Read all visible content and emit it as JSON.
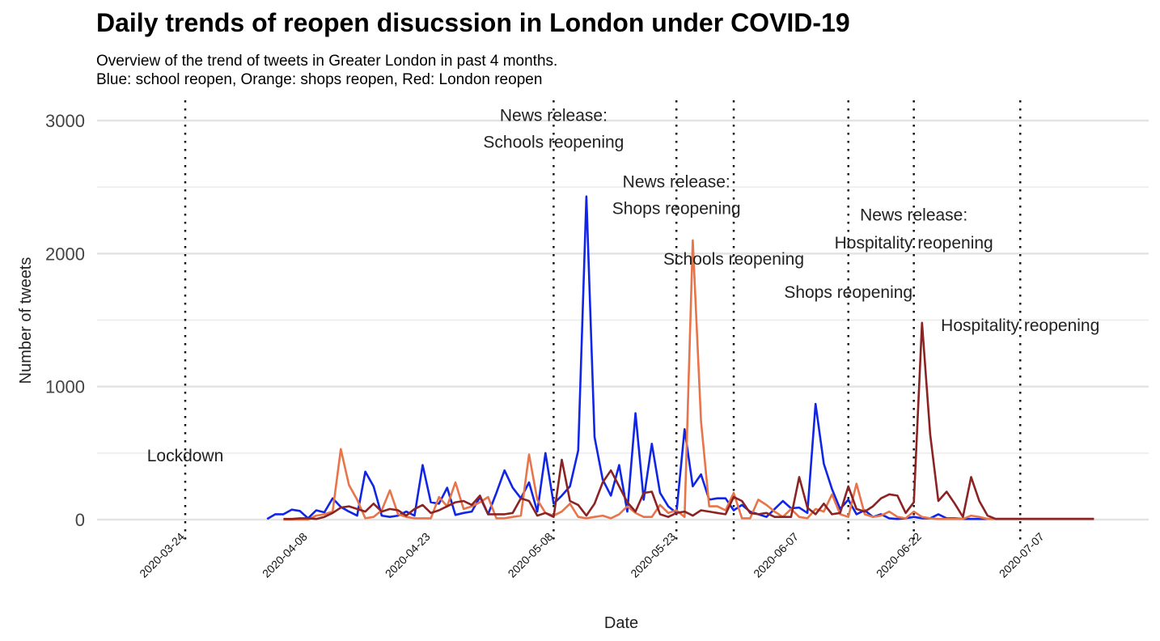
{
  "chart_data": {
    "type": "line",
    "title": "Daily trends of reopen disucssion in London under COVID-19",
    "subtitle_lines": [
      "Overview of the trend of tweets in Greater London in past 4 months.",
      "Blue: school reopen, Orange: shops reopen, Red: London reopen"
    ],
    "xlabel": "Date",
    "ylabel": "Number of tweets",
    "ylim": [
      0,
      3000
    ],
    "yticks": [
      0,
      1000,
      2000,
      3000
    ],
    "xlim": [
      "2020-03-24",
      "2020-07-20"
    ],
    "xticks": [
      "2020-03-24",
      "2020-04-08",
      "2020-04-23",
      "2020-05-08",
      "2020-05-23",
      "2020-06-07",
      "2020-06-22",
      "2020-07-07"
    ],
    "grid": true,
    "legend": "none",
    "x_start": "2020-04-03",
    "series": [
      {
        "color": "#1025e6",
        "values": [
          5,
          40,
          40,
          75,
          65,
          10,
          70,
          55,
          160,
          95,
          60,
          30,
          360,
          250,
          30,
          20,
          30,
          60,
          30,
          410,
          130,
          120,
          240,
          35,
          50,
          60,
          170,
          40,
          200,
          370,
          240,
          160,
          280,
          60,
          500,
          120,
          180,
          250,
          520,
          2430,
          620,
          300,
          180,
          410,
          60,
          800,
          150,
          570,
          200,
          100,
          50,
          680,
          250,
          340,
          150,
          160,
          160,
          70,
          110,
          60,
          40,
          20,
          80,
          140,
          85,
          90,
          50,
          870,
          420,
          230,
          80,
          150,
          40,
          70,
          20,
          40,
          10,
          5,
          10,
          20,
          10,
          10,
          40,
          10,
          10,
          5,
          5,
          5,
          5,
          5,
          5,
          5,
          5,
          5,
          5,
          5,
          5,
          5,
          5,
          5,
          5,
          5
        ]
      },
      {
        "color": "#e8744a",
        "values": [
          null,
          null,
          0,
          0,
          0,
          0,
          30,
          40,
          60,
          530,
          260,
          150,
          10,
          20,
          70,
          220,
          40,
          20,
          10,
          10,
          10,
          170,
          100,
          280,
          80,
          100,
          130,
          170,
          10,
          10,
          20,
          30,
          490,
          150,
          50,
          30,
          60,
          120,
          20,
          10,
          20,
          30,
          10,
          40,
          100,
          50,
          20,
          20,
          110,
          50,
          70,
          20,
          2100,
          740,
          100,
          100,
          70,
          200,
          10,
          10,
          150,
          110,
          60,
          20,
          80,
          20,
          10,
          80,
          60,
          190,
          40,
          20,
          270,
          40,
          20,
          30,
          60,
          20,
          10,
          60,
          20,
          10,
          5,
          5,
          5,
          5,
          30,
          20,
          5,
          5,
          5,
          5,
          5,
          5,
          5,
          5,
          5,
          5,
          5,
          5,
          5,
          5
        ]
      },
      {
        "color": "#8b2323",
        "values": [
          null,
          null,
          5,
          5,
          10,
          10,
          5,
          20,
          50,
          90,
          100,
          80,
          60,
          120,
          60,
          80,
          70,
          30,
          80,
          110,
          50,
          70,
          100,
          130,
          140,
          110,
          180,
          40,
          40,
          40,
          50,
          160,
          140,
          30,
          50,
          20,
          450,
          140,
          110,
          30,
          120,
          280,
          370,
          250,
          130,
          60,
          200,
          210,
          40,
          20,
          50,
          60,
          30,
          70,
          60,
          50,
          40,
          170,
          140,
          50,
          40,
          50,
          20,
          20,
          20,
          320,
          90,
          40,
          120,
          40,
          50,
          250,
          80,
          60,
          100,
          160,
          190,
          180,
          50,
          130,
          1480,
          640,
          140,
          210,
          120,
          20,
          320,
          140,
          30,
          5,
          5,
          5,
          5,
          5,
          5,
          5,
          5,
          5,
          5,
          5,
          5,
          5
        ]
      }
    ],
    "annotations": [
      {
        "date": "2020-03-24",
        "lines": [
          "Lockdown"
        ],
        "label_y": [
          480
        ]
      },
      {
        "date": "2020-05-08",
        "lines": [
          "News release:",
          "Schools reopening"
        ],
        "label_y": [
          3040,
          2840
        ]
      },
      {
        "date": "2020-05-23",
        "lines": [
          "News release:",
          "Shops reopening"
        ],
        "label_y": [
          2540,
          2340
        ]
      },
      {
        "date": "2020-05-30",
        "lines": [
          "Schools reopening"
        ],
        "label_y": [
          1960
        ]
      },
      {
        "date": "2020-06-13",
        "lines": [
          "Shops reopening"
        ],
        "label_y": [
          1710
        ]
      },
      {
        "date": "2020-06-21",
        "lines": [
          "News release:",
          "Hospitality reopening"
        ],
        "label_y": [
          2290,
          2080
        ]
      },
      {
        "date": "2020-07-04",
        "lines": [
          "Hospitality reopening"
        ],
        "label_y": [
          1460
        ]
      }
    ]
  }
}
